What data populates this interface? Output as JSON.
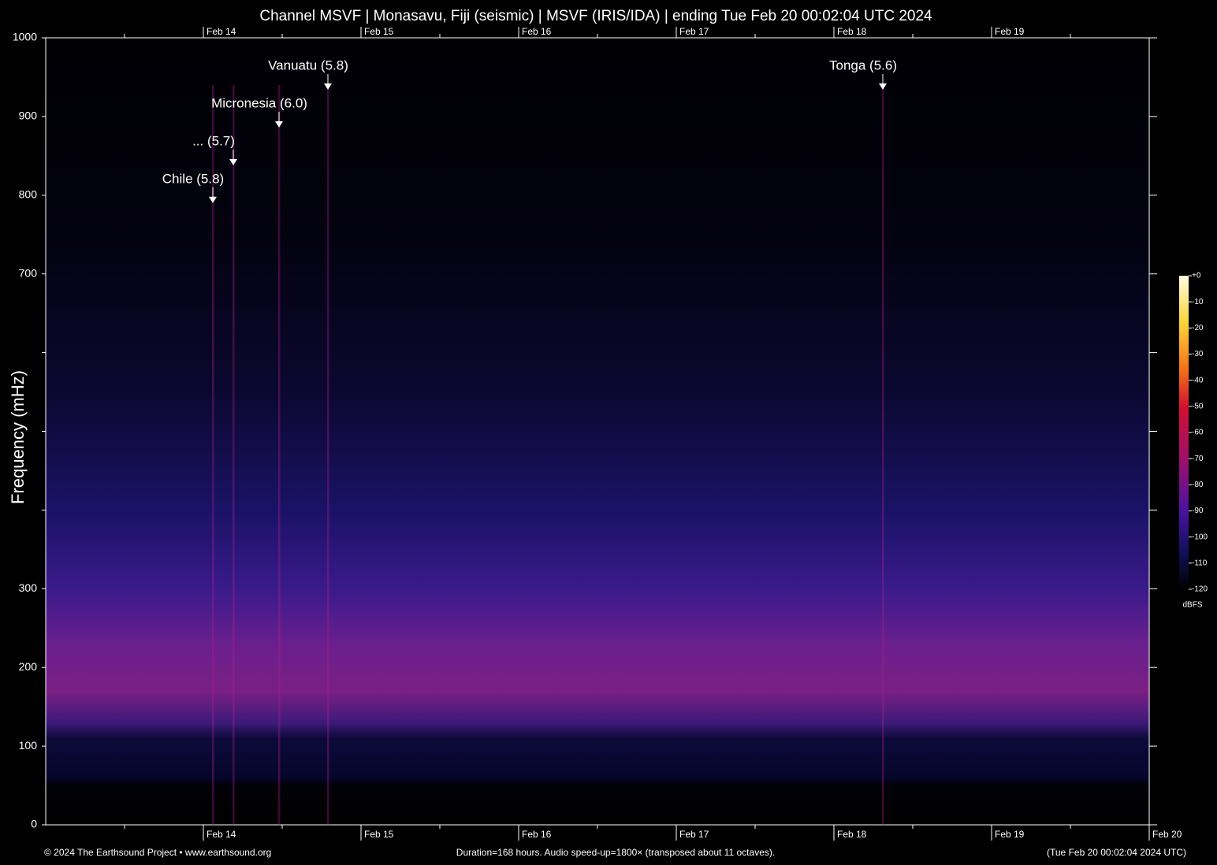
{
  "chart_data": {
    "type": "spectrogram",
    "title": "Channel MSVF | Monasavu, Fiji (seismic) | MSVF (IRIS/IDA) | ending Tue Feb 20 00:02:04 UTC 2024",
    "ylabel": "Frequency (mHz)",
    "ylim": [
      0,
      1000
    ],
    "yticks": [
      0,
      100,
      200,
      300,
      {
        "value": 400,
        "label": null
      },
      {
        "value": 500,
        "label": null
      },
      {
        "value": 600,
        "label": null
      },
      700,
      800,
      900,
      1000
    ],
    "xlim": [
      13,
      20
    ],
    "xticks": [
      {
        "value": 13.5,
        "label": null
      },
      {
        "value": 14,
        "label": "Feb 14"
      },
      {
        "value": 14.5,
        "label": null
      },
      {
        "value": 15,
        "label": "Feb 15"
      },
      {
        "value": 15.5,
        "label": null
      },
      {
        "value": 16,
        "label": "Feb 16"
      },
      {
        "value": 16.5,
        "label": null
      },
      {
        "value": 17,
        "label": "Feb 17"
      },
      {
        "value": 17.5,
        "label": null
      },
      {
        "value": 18,
        "label": "Feb 18"
      },
      {
        "value": 18.5,
        "label": null
      },
      {
        "value": 19,
        "label": "Feb 19"
      },
      {
        "value": 19.5,
        "label": null
      },
      {
        "value": 20,
        "label": "Feb 20"
      }
    ],
    "top_xticks": [
      {
        "value": 13.5,
        "label": null
      },
      {
        "value": 14,
        "label": "Feb 14"
      },
      {
        "value": 14.5,
        "label": null
      },
      {
        "value": 15,
        "label": "Feb 15"
      },
      {
        "value": 15.5,
        "label": null
      },
      {
        "value": 16,
        "label": "Feb 16"
      },
      {
        "value": 16.5,
        "label": null
      },
      {
        "value": 17,
        "label": "Feb 17"
      },
      {
        "value": 17.5,
        "label": null
      },
      {
        "value": 18,
        "label": "Feb 18"
      },
      {
        "value": 18.5,
        "label": null
      },
      {
        "value": 19,
        "label": "Feb 19"
      },
      {
        "value": 19.5,
        "label": null
      }
    ],
    "annotations": [
      {
        "text": "Chile (5.8)",
        "x": 14.06,
        "y": 790
      },
      {
        "text": "... (5.7)",
        "x": 14.19,
        "y": 838
      },
      {
        "text": "Micronesia (6.0)",
        "x": 14.48,
        "y": 886
      },
      {
        "text": "Vanuatu (5.8)",
        "x": 14.79,
        "y": 934
      },
      {
        "text": "Tonga (5.6)",
        "x": 18.31,
        "y": 934
      }
    ],
    "colorbar": {
      "label": "dBFS",
      "lim": [
        -120,
        0
      ],
      "ticks": [
        {
          "value": 0,
          "label": "+0"
        },
        -10,
        -20,
        -30,
        -40,
        -50,
        -60,
        -70,
        -80,
        -90,
        -100,
        -110,
        -120
      ]
    },
    "footer": {
      "left": "© 2024 The Earthsound Project • www.earthsound.org",
      "center": "Duration=168 hours. Audio speed-up=1800× (transposed about 11 octaves).",
      "right": "(Tue Feb 20 00:02:04 2024 UTC)"
    }
  }
}
